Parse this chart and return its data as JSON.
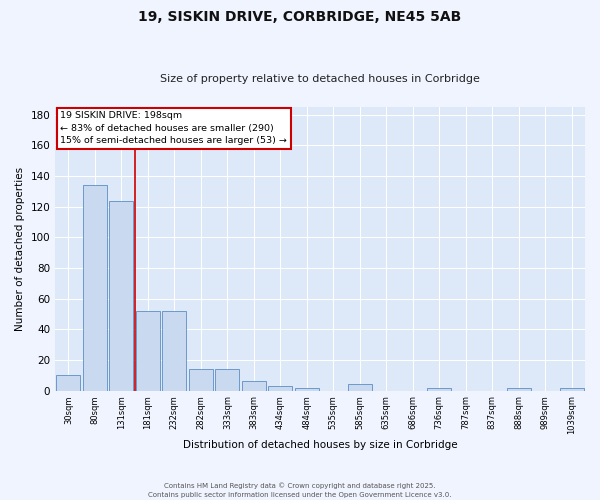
{
  "title": "19, SISKIN DRIVE, CORBRIDGE, NE45 5AB",
  "subtitle": "Size of property relative to detached houses in Corbridge",
  "xlabel": "Distribution of detached houses by size in Corbridge",
  "ylabel": "Number of detached properties",
  "bin_labels": [
    "30sqm",
    "80sqm",
    "131sqm",
    "181sqm",
    "232sqm",
    "282sqm",
    "333sqm",
    "383sqm",
    "434sqm",
    "484sqm",
    "535sqm",
    "585sqm",
    "635sqm",
    "686sqm",
    "736sqm",
    "787sqm",
    "837sqm",
    "888sqm",
    "989sqm",
    "1039sqm"
  ],
  "values": [
    10,
    134,
    124,
    52,
    52,
    14,
    14,
    6,
    3,
    2,
    0,
    4,
    0,
    0,
    2,
    0,
    0,
    2,
    0,
    2
  ],
  "bar_color": "#c9d9f0",
  "bar_edge_color": "#5b8ec4",
  "bg_color": "#dde8f8",
  "fig_color": "#f0f4ff",
  "grid_color": "#ffffff",
  "red_line_x": 2.5,
  "annotation_title": "19 SISKIN DRIVE: 198sqm",
  "annotation_line1": "← 83% of detached houses are smaller (290)",
  "annotation_line2": "15% of semi-detached houses are larger (53) →",
  "annotation_box_color": "#cc0000",
  "ylim": [
    0,
    185
  ],
  "yticks": [
    0,
    20,
    40,
    60,
    80,
    100,
    120,
    140,
    160,
    180
  ],
  "footer1": "Contains HM Land Registry data © Crown copyright and database right 2025.",
  "footer2": "Contains public sector information licensed under the Open Government Licence v3.0."
}
